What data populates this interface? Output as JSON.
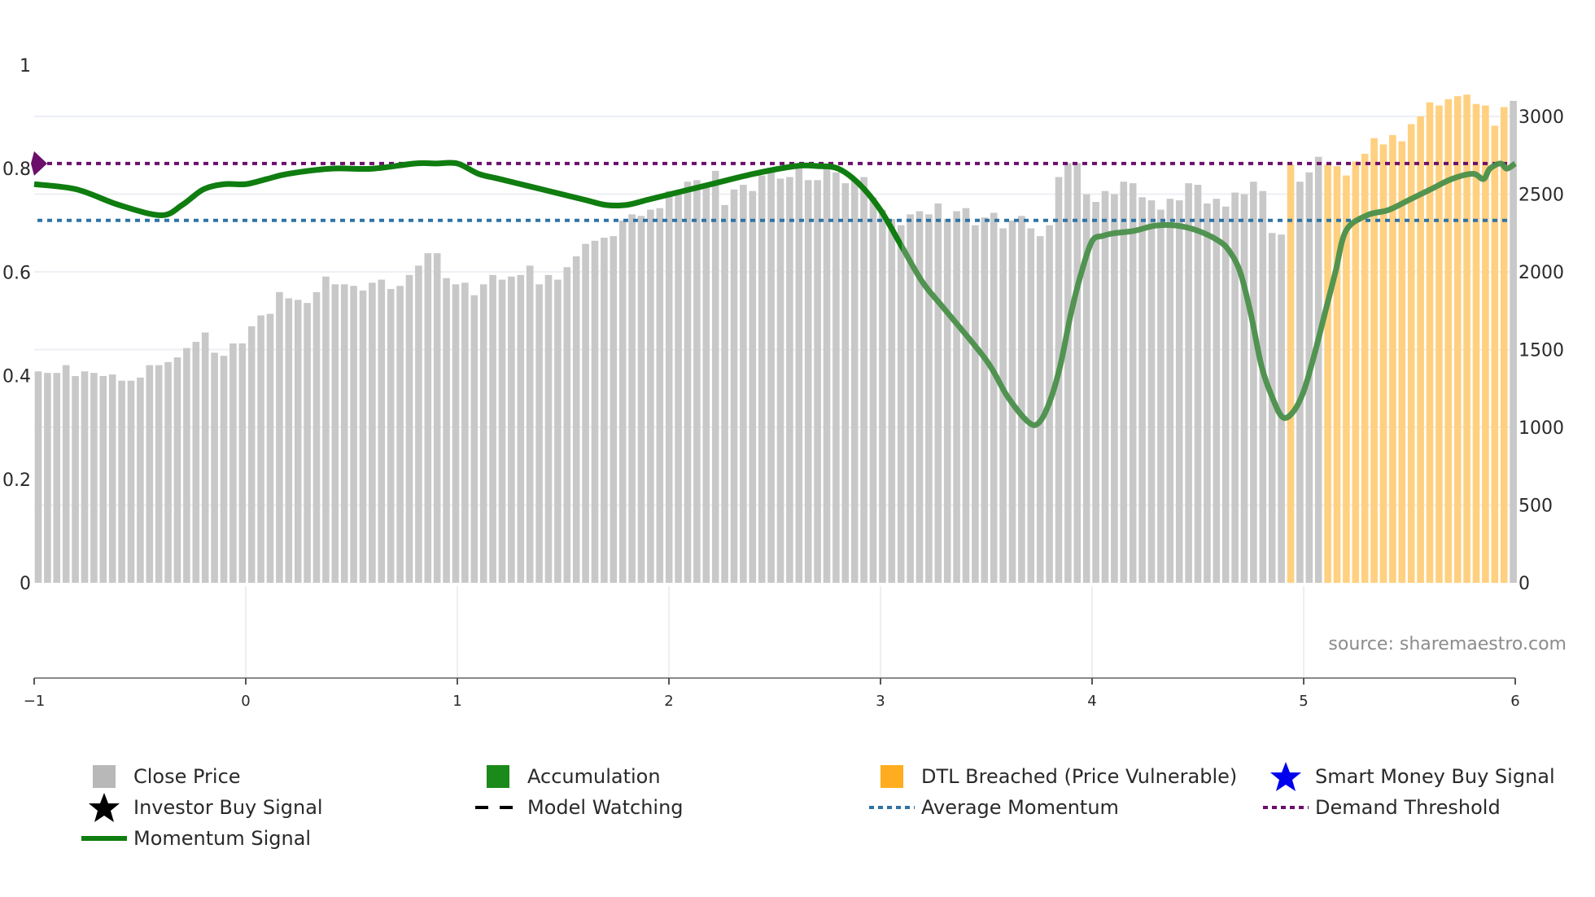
{
  "chart_data": {
    "type": "bar",
    "title": "",
    "xlabel": "",
    "ylabel_left": "",
    "ylabel_right": "",
    "x_axis": {
      "range": [
        -1,
        6
      ],
      "ticks": [
        "−1",
        "0",
        "1",
        "2",
        "3",
        "4",
        "5",
        "6"
      ]
    },
    "y_axis_left": {
      "range": [
        0,
        1
      ],
      "ticks": [
        "0",
        "0.2",
        "0.4",
        "0.6",
        "0.8",
        "1"
      ]
    },
    "y_axis_right": {
      "range": [
        0,
        3300
      ],
      "ticks": [
        "0",
        "500",
        "1000",
        "1500",
        "2000",
        "2500",
        "3000"
      ]
    },
    "grid": true,
    "legend_position": "bottom",
    "source": "source: sharemaestro.com",
    "series": [
      {
        "name": "Close Price",
        "type": "bar",
        "axis": "right",
        "color": "#c8c8c8",
        "highlight_color": "#ffd080",
        "highlight_label": "DTL Breached (Price Vulnerable)",
        "highlight_indices": [
          135,
          139,
          140,
          141,
          142,
          143,
          144,
          145,
          146,
          147,
          148,
          149,
          150,
          151,
          152,
          153,
          154,
          155,
          156,
          157,
          158
        ],
        "values": [
          1360,
          1350,
          1350,
          1400,
          1330,
          1360,
          1350,
          1330,
          1340,
          1300,
          1300,
          1320,
          1400,
          1400,
          1420,
          1450,
          1510,
          1550,
          1610,
          1480,
          1460,
          1540,
          1540,
          1650,
          1720,
          1730,
          1870,
          1830,
          1820,
          1800,
          1870,
          1970,
          1920,
          1920,
          1910,
          1880,
          1930,
          1950,
          1890,
          1910,
          1980,
          2040,
          2120,
          2120,
          1960,
          1920,
          1930,
          1850,
          1920,
          1980,
          1950,
          1970,
          1980,
          2040,
          1920,
          1980,
          1950,
          2030,
          2100,
          2180,
          2200,
          2220,
          2230,
          2330,
          2370,
          2360,
          2400,
          2410,
          2520,
          2520,
          2580,
          2590,
          2560,
          2650,
          2430,
          2530,
          2560,
          2520,
          2620,
          2670,
          2600,
          2610,
          2670,
          2590,
          2590,
          2670,
          2640,
          2570,
          2590,
          2610,
          2480,
          2400,
          2340,
          2300,
          2370,
          2390,
          2370,
          2440,
          2340,
          2390,
          2410,
          2300,
          2350,
          2380,
          2280,
          2330,
          2360,
          2280,
          2230,
          2300,
          2610,
          2700,
          2700,
          2500,
          2450,
          2520,
          2500,
          2580,
          2570,
          2480,
          2460,
          2400,
          2470,
          2460,
          2570,
          2560,
          2440,
          2470,
          2420,
          2510,
          2500,
          2580,
          2520,
          2250,
          2240,
          2690,
          2580,
          2640,
          2740,
          2690,
          2680,
          2620,
          2710,
          2760,
          2860,
          2820,
          2880,
          2840,
          2950,
          3000,
          3090,
          3070,
          3110,
          3130,
          3140,
          3080,
          3070,
          2940,
          3060,
          3100
        ]
      },
      {
        "name": "Momentum Signal",
        "type": "line",
        "axis": "left",
        "color": "#0f7d0f",
        "faded_color": "#4a8f4a",
        "x": [
          -1.0,
          -0.8,
          -0.6,
          -0.4,
          -0.3,
          -0.2,
          -0.1,
          0.0,
          0.1,
          0.2,
          0.4,
          0.6,
          0.8,
          0.9,
          1.0,
          1.1,
          1.2,
          1.4,
          1.6,
          1.7,
          1.8,
          1.9,
          2.0,
          2.2,
          2.4,
          2.6,
          2.7,
          2.8,
          2.9,
          3.0,
          3.1,
          3.2,
          3.3,
          3.5,
          3.6,
          3.7,
          3.75,
          3.8,
          3.85,
          3.9,
          3.95,
          4.0,
          4.05,
          4.1,
          4.2,
          4.3,
          4.4,
          4.5,
          4.6,
          4.65,
          4.7,
          4.75,
          4.8,
          4.85,
          4.9,
          4.95,
          5.0,
          5.05,
          5.1,
          5.15,
          5.2,
          5.3,
          5.4,
          5.5,
          5.6,
          5.7,
          5.8,
          5.85,
          5.88,
          5.93,
          5.96,
          6.0
        ],
        "values": [
          0.77,
          0.76,
          0.73,
          0.71,
          0.73,
          0.76,
          0.77,
          0.77,
          0.78,
          0.79,
          0.8,
          0.8,
          0.81,
          0.81,
          0.81,
          0.79,
          0.78,
          0.76,
          0.74,
          0.73,
          0.73,
          0.74,
          0.75,
          0.77,
          0.79,
          0.805,
          0.805,
          0.8,
          0.77,
          0.72,
          0.65,
          0.58,
          0.53,
          0.43,
          0.36,
          0.31,
          0.31,
          0.35,
          0.42,
          0.52,
          0.6,
          0.66,
          0.67,
          0.675,
          0.68,
          0.69,
          0.69,
          0.68,
          0.66,
          0.64,
          0.6,
          0.52,
          0.42,
          0.36,
          0.32,
          0.33,
          0.37,
          0.44,
          0.52,
          0.6,
          0.68,
          0.71,
          0.72,
          0.74,
          0.76,
          0.78,
          0.79,
          0.78,
          0.8,
          0.81,
          0.8,
          0.81
        ]
      },
      {
        "name": "Average Momentum",
        "type": "hline",
        "axis": "left",
        "value": 0.7,
        "color": "#2f73a5",
        "style": "dotted"
      },
      {
        "name": "Demand Threshold",
        "type": "hline",
        "axis": "left",
        "value": 0.81,
        "color": "#6b0f6b",
        "style": "dotted",
        "marker": "diamond"
      }
    ]
  },
  "legend": {
    "items": [
      {
        "label": "Close Price",
        "swatch": "square",
        "color": "#b8b8b8"
      },
      {
        "label": "Accumulation",
        "swatch": "square",
        "color": "#1a8a1a"
      },
      {
        "label": "DTL Breached (Price Vulnerable)",
        "swatch": "square",
        "color": "#ffad1f"
      },
      {
        "label": "Smart Money Buy Signal",
        "swatch": "star",
        "color": "#0000ee"
      },
      {
        "label": "Investor Buy Signal",
        "swatch": "star",
        "color": "#000000"
      },
      {
        "label": "Model Watching",
        "swatch": "dash",
        "color": "#000000"
      },
      {
        "label": "Average Momentum",
        "swatch": "dot",
        "color": "#2f73a5"
      },
      {
        "label": "Demand Threshold",
        "swatch": "dot",
        "color": "#6b0f6b"
      },
      {
        "label": "Momentum Signal",
        "swatch": "line",
        "color": "#0f7d0f"
      }
    ]
  }
}
